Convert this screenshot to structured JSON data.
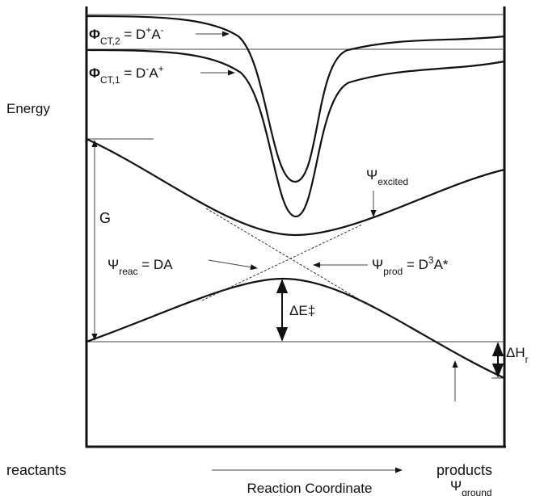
{
  "labels": [
    {
      "segments": [
        {
          "text": "Φ"
        },
        {
          "text": "CT,2",
          "shift": "sub"
        },
        {
          "text": " = D"
        },
        {
          "text": "+",
          "shift": "super"
        },
        {
          "text": "A"
        },
        {
          "text": "-",
          "shift": "super"
        }
      ]
    },
    {
      "segments": [
        {
          "text": "Φ"
        },
        {
          "text": "CT,1",
          "shift": "sub"
        },
        {
          "text": " = D"
        },
        {
          "text": "-",
          "shift": "super"
        },
        {
          "text": "A"
        },
        {
          "text": "+",
          "shift": "super"
        }
      ]
    },
    {
      "segments": [
        {
          "text": "Energy"
        }
      ]
    },
    {
      "segments": [
        {
          "text": "G"
        }
      ]
    },
    {
      "segments": [
        {
          "text": "Ψ"
        },
        {
          "text": "excited",
          "shift": "sub"
        }
      ]
    },
    {
      "segments": [
        {
          "text": "Ψ"
        },
        {
          "text": "reac",
          "shift": "sub"
        },
        {
          "text": " = DA"
        }
      ]
    },
    {
      "segments": [
        {
          "text": "Ψ"
        },
        {
          "text": "prod",
          "shift": "sub"
        },
        {
          "text": " = D"
        },
        {
          "text": "3",
          "shift": "super"
        },
        {
          "text": "A*"
        }
      ]
    },
    {
      "segments": [
        {
          "text": "ΔE‡"
        }
      ]
    },
    {
      "segments": [
        {
          "text": "ΔH"
        },
        {
          "text": "r",
          "shift": "sub"
        }
      ]
    },
    {
      "segments": [
        {
          "text": "Ψ"
        },
        {
          "text": "ground",
          "shift": "sub"
        }
      ]
    },
    {
      "segments": [
        {
          "text": "reactants"
        }
      ]
    },
    {
      "segments": [
        {
          "text": "products"
        }
      ]
    },
    {
      "segments": [
        {
          "text": "Reaction Coordinate"
        }
      ]
    }
  ]
}
